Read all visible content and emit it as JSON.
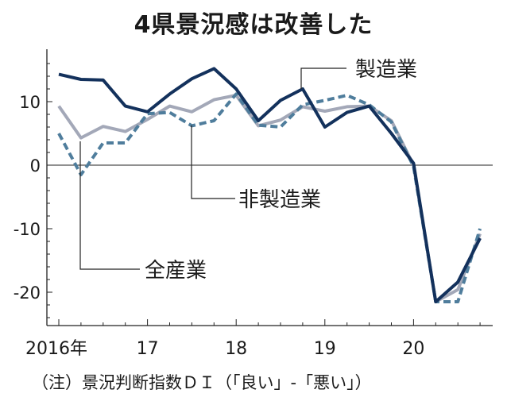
{
  "chart_data": {
    "type": "line",
    "title": "4県景況感は改善した",
    "note": "（注）景況判断指数ＤＩ（「良い」-「悪い」）",
    "x_tick_labels": [
      "2016年",
      "17",
      "18",
      "19",
      "20"
    ],
    "y_tick_labels": [
      "10",
      "0",
      "-10",
      "-20"
    ],
    "y_ticks": [
      10,
      0,
      -10,
      -20
    ],
    "ylim": [
      -25,
      18
    ],
    "x_start": "2016-Q1",
    "grid": false,
    "series": [
      {
        "name": "製造業",
        "color": "#13315c",
        "dash": "solid",
        "values": [
          14.3,
          13.5,
          13.4,
          9.3,
          8.4,
          11.2,
          13.6,
          15.2,
          12.0,
          7.0,
          10.2,
          12.0,
          6.0,
          8.3,
          9.3,
          5.0,
          0.3,
          -21.5,
          -18.4,
          -11.5
        ]
      },
      {
        "name": "非製造業",
        "color": "#4f7d9c",
        "dash": "dashed",
        "values": [
          5.0,
          -1.5,
          3.5,
          3.5,
          8.1,
          8.3,
          6.2,
          7.0,
          11.2,
          6.3,
          6.0,
          9.5,
          10.2,
          11.0,
          9.5,
          6.8,
          -0.2,
          -21.5,
          -21.5,
          -10.0
        ]
      },
      {
        "name": "全産業",
        "color": "#a3a8b8",
        "dash": "solid",
        "values": [
          9.3,
          4.3,
          6.1,
          5.3,
          7.2,
          9.3,
          8.4,
          10.3,
          11.0,
          6.2,
          7.1,
          9.2,
          8.5,
          9.2,
          9.3,
          7.0,
          0.0,
          -21.5,
          -19.6,
          -10.8
        ]
      }
    ]
  }
}
